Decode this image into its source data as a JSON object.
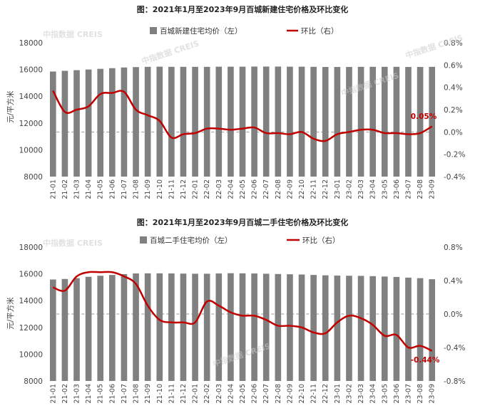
{
  "chart_data": [
    {
      "type": "bar",
      "title": "图：2021年1月至2023年9月百城新建住宅价格及环比变化",
      "ylabel": "元/平方米",
      "ylim": [
        8000,
        18000
      ],
      "y2lim": [
        -0.4,
        0.8
      ],
      "yticks": [
        "8000",
        "10000",
        "12000",
        "14000",
        "16000",
        "18000"
      ],
      "y2ticks": [
        "-0.4%",
        "-0.2%",
        "0.0%",
        "0.2%",
        "0.4%",
        "0.6%",
        "0.8%"
      ],
      "zero_line_right": 0,
      "legend": {
        "bar": "百城新建住宅均价（左）",
        "line": "环比（右）"
      },
      "annotation": "0.05%",
      "categories": [
        "21-01",
        "21-02",
        "21-03",
        "21-04",
        "21-05",
        "21-06",
        "21-07",
        "21-08",
        "21-09",
        "21-10",
        "21-11",
        "21-12",
        "22-01",
        "22-02",
        "22-03",
        "22-04",
        "22-05",
        "22-06",
        "22-07",
        "22-08",
        "22-09",
        "22-10",
        "22-11",
        "22-12",
        "23-01",
        "23-02",
        "23-03",
        "23-04",
        "23-05",
        "23-06",
        "23-07",
        "23-08",
        "23-09"
      ],
      "series": [
        {
          "name": "百城新建住宅均价（左）",
          "type": "bar",
          "axis": "left",
          "color": "#808080",
          "values": [
            15850,
            15900,
            15950,
            16000,
            16050,
            16100,
            16150,
            16180,
            16200,
            16210,
            16200,
            16200,
            16200,
            16200,
            16210,
            16210,
            16210,
            16220,
            16220,
            16220,
            16210,
            16210,
            16200,
            16190,
            16190,
            16190,
            16200,
            16200,
            16200,
            16200,
            16190,
            16190,
            16200
          ]
        },
        {
          "name": "环比（右）",
          "type": "line",
          "axis": "right",
          "color": "#c00000",
          "values": [
            0.37,
            0.18,
            0.2,
            0.23,
            0.34,
            0.35,
            0.36,
            0.2,
            0.15,
            0.1,
            -0.05,
            -0.02,
            -0.01,
            0.03,
            0.03,
            0.02,
            0.03,
            0.04,
            -0.01,
            -0.01,
            -0.02,
            0.0,
            -0.06,
            -0.08,
            -0.02,
            0.0,
            0.02,
            0.02,
            -0.01,
            -0.01,
            -0.02,
            -0.01,
            0.05
          ]
        }
      ]
    },
    {
      "type": "bar",
      "title": "图：2021年1月至2023年9月百城二手住宅价格及环比变化",
      "ylabel": "元/平方米",
      "ylim": [
        8000,
        18000
      ],
      "y2lim": [
        -0.8,
        0.8
      ],
      "yticks": [
        "8000",
        "10000",
        "12000",
        "14000",
        "16000",
        "18000"
      ],
      "y2ticks": [
        "-0.8%",
        "-0.4%",
        "0.0%",
        "0.4%",
        "0.8%"
      ],
      "zero_line_right": 0,
      "legend": {
        "bar": "百城二手住宅均价（左）",
        "line": "环比（右）"
      },
      "annotation": "-0.44%",
      "categories": [
        "21-01",
        "21-02",
        "21-03",
        "21-04",
        "21-05",
        "21-06",
        "21-07",
        "21-08",
        "21-09",
        "21-10",
        "21-11",
        "21-12",
        "22-01",
        "22-02",
        "22-03",
        "22-04",
        "22-05",
        "22-06",
        "22-07",
        "22-08",
        "22-09",
        "22-10",
        "22-11",
        "22-12",
        "23-01",
        "23-02",
        "23-03",
        "23-04",
        "23-05",
        "23-06",
        "23-07",
        "23-08",
        "23-09"
      ],
      "series": [
        {
          "name": "百城二手住宅均价（左）",
          "type": "bar",
          "axis": "left",
          "color": "#808080",
          "values": [
            15580,
            15620,
            15680,
            15780,
            15860,
            15920,
            15980,
            16030,
            16040,
            16040,
            16030,
            16020,
            16010,
            16010,
            16030,
            16050,
            16040,
            16030,
            16010,
            15990,
            15970,
            15950,
            15920,
            15890,
            15870,
            15860,
            15850,
            15830,
            15800,
            15770,
            15720,
            15680,
            15600
          ]
        },
        {
          "name": "环比（右）",
          "type": "line",
          "axis": "right",
          "color": "#c00000",
          "values": [
            0.32,
            0.28,
            0.45,
            0.5,
            0.5,
            0.5,
            0.45,
            0.36,
            0.1,
            -0.07,
            -0.1,
            -0.1,
            -0.1,
            0.15,
            0.1,
            0.02,
            -0.02,
            -0.02,
            -0.07,
            -0.14,
            -0.14,
            -0.16,
            -0.22,
            -0.23,
            -0.1,
            -0.02,
            -0.05,
            -0.13,
            -0.26,
            -0.25,
            -0.4,
            -0.38,
            -0.44
          ]
        }
      ]
    }
  ],
  "watermark": "中指数据 CREIS"
}
